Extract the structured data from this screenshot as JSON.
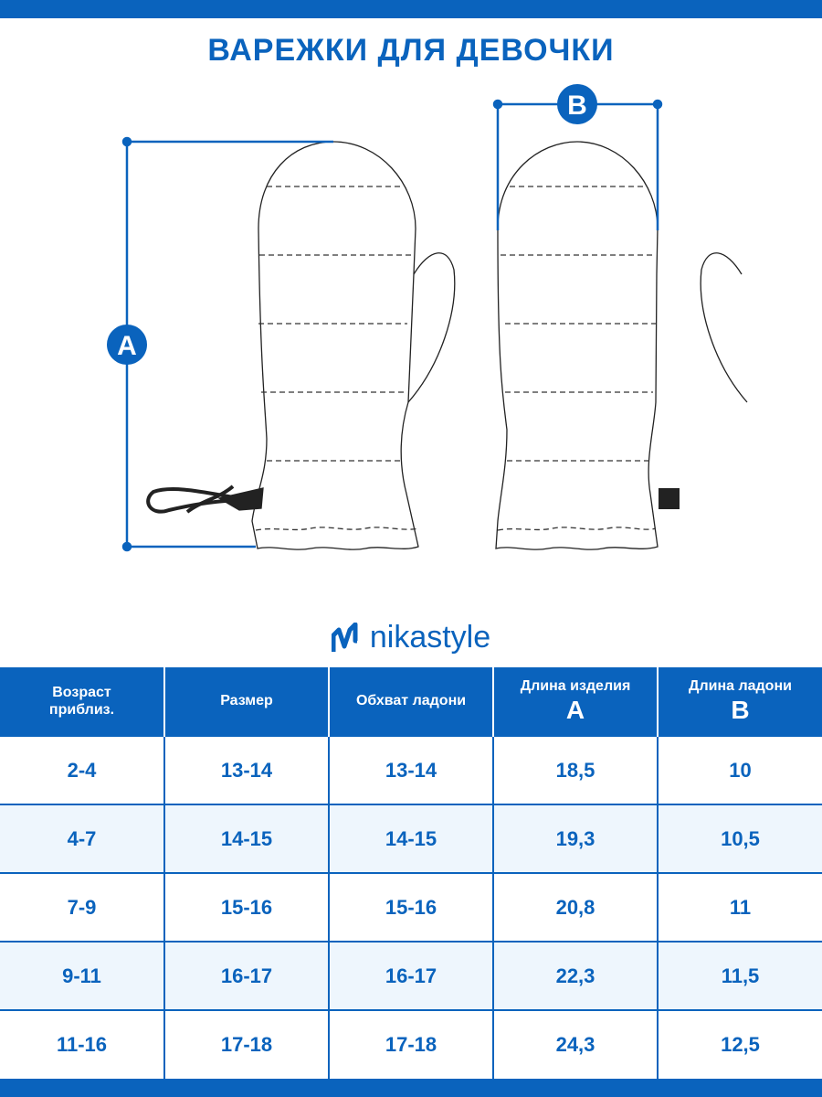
{
  "title": "ВАРЕЖКИ ДЛЯ ДЕВОЧКИ",
  "diagram": {
    "label_a": "A",
    "label_b": "B"
  },
  "brand": {
    "name": "nikastyle",
    "color": "#0a63bd"
  },
  "table": {
    "headers": [
      {
        "label": "Возраст приблиз.",
        "sub": ""
      },
      {
        "label": "Размер",
        "sub": ""
      },
      {
        "label": "Обхват ладони",
        "sub": ""
      },
      {
        "label": "Длина изделия",
        "sub": "A"
      },
      {
        "label": "Длина ладони",
        "sub": "B"
      }
    ],
    "rows": [
      [
        "2-4",
        "13-14",
        "13-14",
        "18,5",
        "10"
      ],
      [
        "4-7",
        "14-15",
        "14-15",
        "19,3",
        "10,5"
      ],
      [
        "7-9",
        "15-16",
        "15-16",
        "20,8",
        "11"
      ],
      [
        "9-11",
        "16-17",
        "16-17",
        "22,3",
        "11,5"
      ],
      [
        "11-16",
        "17-18",
        "17-18",
        "24,3",
        "12,5"
      ]
    ]
  }
}
